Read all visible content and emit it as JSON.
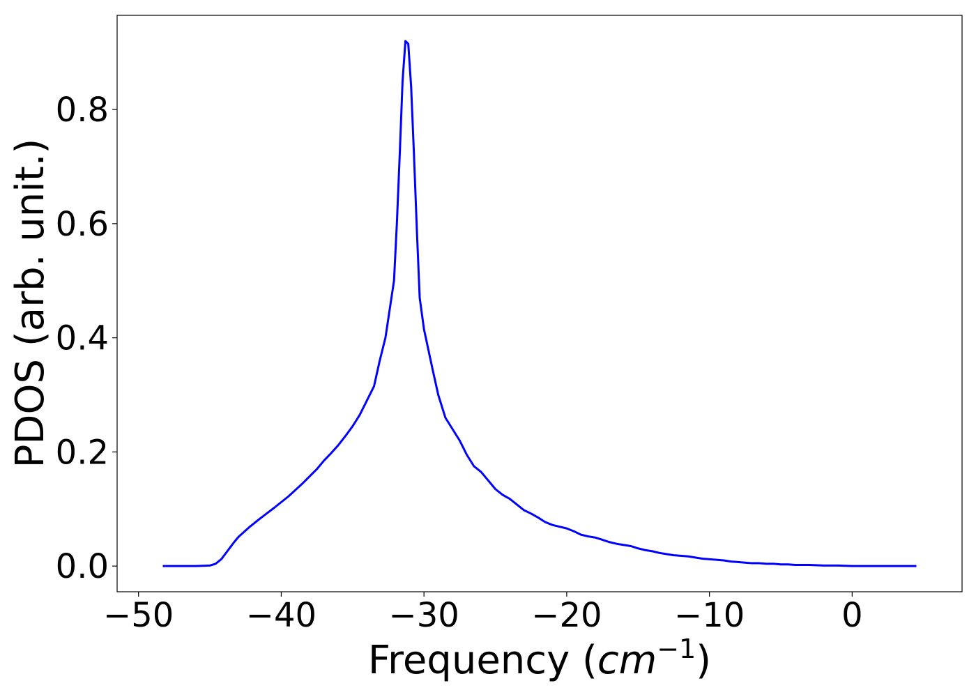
{
  "chart_data": {
    "type": "line",
    "title": "",
    "xlabel": {
      "prefix": "Frequency (",
      "unit_base": "cm",
      "unit_exp": "−1",
      "suffix": ")"
    },
    "ylabel": "PDOS (arb. unit.)",
    "xlim": [
      -51.5,
      7.7
    ],
    "ylim": [
      -0.045,
      0.965
    ],
    "xticks": [
      -50,
      -40,
      -30,
      -20,
      -10,
      0
    ],
    "xtick_labels": [
      "−50",
      "−40",
      "−30",
      "−20",
      "−10",
      "0"
    ],
    "yticks": [
      0.0,
      0.2,
      0.4,
      0.6,
      0.8
    ],
    "ytick_labels": [
      "0.0",
      "0.2",
      "0.4",
      "0.6",
      "0.8"
    ],
    "grid": false,
    "legend": "none",
    "series": [
      {
        "color": "#0000ff",
        "x": [
          -48.3,
          -47,
          -46,
          -45,
          -44.6,
          -44.2,
          -43.9,
          -43.6,
          -43.3,
          -43,
          -42.6,
          -42.2,
          -41.5,
          -40.5,
          -39.5,
          -38.5,
          -37.5,
          -37,
          -36.5,
          -36,
          -35.5,
          -35,
          -34.5,
          -34,
          -33.5,
          -33.1,
          -32.7,
          -32.4,
          -32.1,
          -31.9,
          -31.7,
          -31.5,
          -31.3,
          -31.1,
          -30.9,
          -30.7,
          -30.5,
          -30.3,
          -30.0,
          -29.7,
          -29.4,
          -29.0,
          -28.5,
          -28,
          -27.5,
          -27,
          -26.5,
          -26,
          -25.5,
          -25,
          -24.5,
          -24,
          -23.5,
          -23,
          -22.5,
          -22,
          -21.5,
          -21,
          -20.5,
          -20,
          -19.5,
          -19,
          -18.5,
          -18,
          -17.5,
          -17,
          -16.5,
          -16,
          -15.5,
          -15,
          -14.5,
          -14,
          -13.5,
          -13,
          -12.5,
          -12,
          -11.5,
          -11,
          -10.5,
          -10,
          -9.5,
          -9,
          -8.5,
          -8,
          -7.5,
          -7,
          -6.5,
          -6,
          -5.5,
          -5,
          -4.5,
          -4,
          -3,
          -2,
          -1,
          0,
          1,
          2,
          3,
          4.5
        ],
        "y": [
          0.0,
          0.0,
          0.0,
          0.001,
          0.004,
          0.012,
          0.022,
          0.032,
          0.042,
          0.051,
          0.06,
          0.069,
          0.083,
          0.102,
          0.122,
          0.145,
          0.17,
          0.185,
          0.198,
          0.212,
          0.228,
          0.245,
          0.265,
          0.29,
          0.315,
          0.36,
          0.4,
          0.45,
          0.5,
          0.6,
          0.72,
          0.85,
          0.92,
          0.915,
          0.84,
          0.72,
          0.59,
          0.47,
          0.415,
          0.38,
          0.345,
          0.3,
          0.26,
          0.24,
          0.22,
          0.195,
          0.175,
          0.165,
          0.15,
          0.135,
          0.125,
          0.118,
          0.108,
          0.098,
          0.092,
          0.085,
          0.077,
          0.072,
          0.069,
          0.066,
          0.061,
          0.055,
          0.052,
          0.05,
          0.046,
          0.042,
          0.039,
          0.037,
          0.035,
          0.031,
          0.028,
          0.026,
          0.023,
          0.021,
          0.019,
          0.018,
          0.017,
          0.015,
          0.013,
          0.012,
          0.011,
          0.01,
          0.008,
          0.007,
          0.006,
          0.005,
          0.005,
          0.004,
          0.004,
          0.003,
          0.003,
          0.002,
          0.002,
          0.001,
          0.001,
          0.0,
          0.0,
          0.0,
          0.0,
          0.0
        ]
      }
    ]
  }
}
